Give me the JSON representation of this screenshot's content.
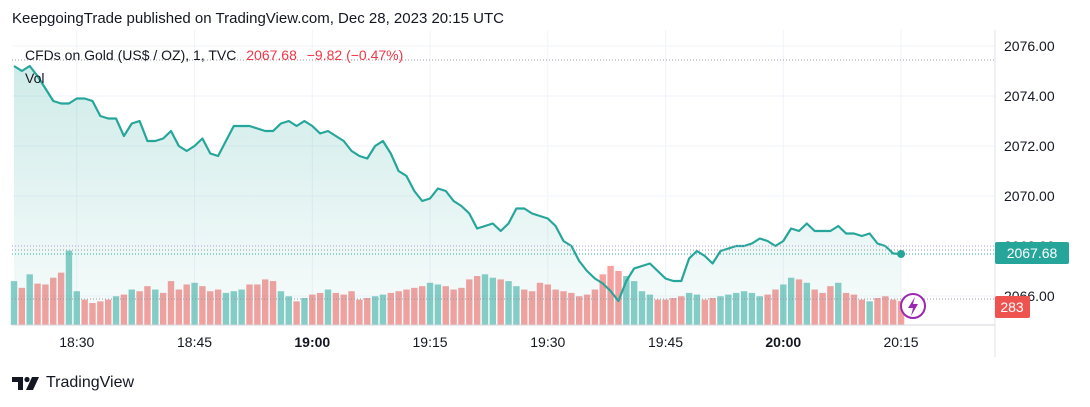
{
  "header": {
    "publisher_line": "KeepgoingTrade published on TradingView.com, Dec 28, 2023 20:15 UTC"
  },
  "legend": {
    "symbol": "CFDs on Gold (US$ / OZ), 1, TVC",
    "price": "2067.68",
    "change": "−9.82 (−0.47%)",
    "volume_label": "Vol"
  },
  "footer": {
    "brand": "TradingView"
  },
  "badges": {
    "price_badge": "2067.68",
    "volume_badge": "283"
  },
  "colors": {
    "line": "#26a69a",
    "area": "#26a69a",
    "up_volume": "#26a69a",
    "down_volume": "#ef5350",
    "price_badge_bg": "#26a69a",
    "volume_badge_bg": "#ef5350"
  },
  "chart_data": {
    "type": "line",
    "title": "",
    "y_axis": {
      "ticks": [
        "2076.00",
        "2074.00",
        "2072.00",
        "2070.00",
        "2066.00"
      ],
      "tick_values": [
        2076,
        2074,
        2072,
        2070,
        2066
      ],
      "range": [
        2065.0,
        2076.5
      ]
    },
    "x_axis": {
      "ticks": [
        "18:30",
        "18:45",
        "19:00",
        "19:15",
        "19:30",
        "19:45",
        "20:00",
        "20:15"
      ],
      "bold": [
        false,
        false,
        true,
        false,
        false,
        false,
        true,
        false
      ],
      "range": [
        "18:22",
        "20:15"
      ]
    },
    "price_series": {
      "x": [
        "18:22",
        "18:23",
        "18:24",
        "18:25",
        "18:26",
        "18:27",
        "18:28",
        "18:29",
        "18:30",
        "18:31",
        "18:32",
        "18:33",
        "18:34",
        "18:35",
        "18:36",
        "18:37",
        "18:38",
        "18:39",
        "18:40",
        "18:41",
        "18:42",
        "18:43",
        "18:44",
        "18:45",
        "18:46",
        "18:47",
        "18:48",
        "18:49",
        "18:50",
        "18:51",
        "18:52",
        "18:53",
        "18:54",
        "18:55",
        "18:56",
        "18:57",
        "18:58",
        "18:59",
        "19:00",
        "19:01",
        "19:02",
        "19:03",
        "19:04",
        "19:05",
        "19:06",
        "19:07",
        "19:08",
        "19:09",
        "19:10",
        "19:11",
        "19:12",
        "19:13",
        "19:14",
        "19:15",
        "19:16",
        "19:17",
        "19:18",
        "19:19",
        "19:20",
        "19:21",
        "19:22",
        "19:23",
        "19:24",
        "19:25",
        "19:26",
        "19:27",
        "19:28",
        "19:29",
        "19:30",
        "19:31",
        "19:32",
        "19:33",
        "19:34",
        "19:35",
        "19:36",
        "19:37",
        "19:38",
        "19:39",
        "19:40",
        "19:41",
        "19:42",
        "19:43",
        "19:44",
        "19:45",
        "19:46",
        "19:47",
        "19:48",
        "19:49",
        "19:50",
        "19:51",
        "19:52",
        "19:53",
        "19:54",
        "19:55",
        "19:56",
        "19:57",
        "19:58",
        "19:59",
        "20:00",
        "20:01",
        "20:02",
        "20:03",
        "20:04",
        "20:05",
        "20:06",
        "20:07",
        "20:08",
        "20:09",
        "20:10",
        "20:11",
        "20:12",
        "20:13",
        "20:14",
        "20:15"
      ],
      "y": [
        2075.2,
        2075.0,
        2075.2,
        2074.8,
        2074.3,
        2073.8,
        2073.7,
        2073.7,
        2073.9,
        2073.9,
        2073.8,
        2073.2,
        2073.1,
        2073.1,
        2072.4,
        2072.9,
        2073.0,
        2072.2,
        2072.2,
        2072.3,
        2072.6,
        2072.0,
        2071.8,
        2072.0,
        2072.3,
        2071.7,
        2071.6,
        2072.2,
        2072.8,
        2072.8,
        2072.8,
        2072.7,
        2072.6,
        2072.6,
        2072.9,
        2073.0,
        2072.8,
        2073.0,
        2072.8,
        2072.5,
        2072.6,
        2072.4,
        2072.2,
        2071.8,
        2071.6,
        2071.5,
        2072.0,
        2072.2,
        2071.7,
        2071.0,
        2070.8,
        2070.2,
        2069.8,
        2069.9,
        2070.3,
        2070.2,
        2069.8,
        2069.6,
        2069.3,
        2068.7,
        2068.8,
        2068.9,
        2068.6,
        2068.9,
        2069.5,
        2069.5,
        2069.3,
        2069.2,
        2069.1,
        2068.8,
        2068.2,
        2068.0,
        2067.4,
        2067.0,
        2066.7,
        2066.5,
        2066.2,
        2065.8,
        2066.6,
        2067.1,
        2067.2,
        2067.3,
        2067.0,
        2066.7,
        2066.6,
        2066.6,
        2067.5,
        2067.8,
        2067.6,
        2067.3,
        2067.8,
        2067.9,
        2068.0,
        2068.0,
        2068.1,
        2068.3,
        2068.2,
        2068.0,
        2068.2,
        2068.7,
        2068.6,
        2068.9,
        2068.6,
        2068.6,
        2068.6,
        2068.8,
        2068.5,
        2068.5,
        2068.4,
        2068.5,
        2068.1,
        2068.0,
        2067.7,
        2067.68
      ]
    },
    "volume_series": {
      "x": [
        "18:22",
        "18:23",
        "18:24",
        "18:25",
        "18:26",
        "18:27",
        "18:28",
        "18:29",
        "18:30",
        "18:31",
        "18:32",
        "18:33",
        "18:34",
        "18:35",
        "18:36",
        "18:37",
        "18:38",
        "18:39",
        "18:40",
        "18:41",
        "18:42",
        "18:43",
        "18:44",
        "18:45",
        "18:46",
        "18:47",
        "18:48",
        "18:49",
        "18:50",
        "18:51",
        "18:52",
        "18:53",
        "18:54",
        "18:55",
        "18:56",
        "18:57",
        "18:58",
        "18:59",
        "19:00",
        "19:01",
        "19:02",
        "19:03",
        "19:04",
        "19:05",
        "19:06",
        "19:07",
        "19:08",
        "19:09",
        "19:10",
        "19:11",
        "19:12",
        "19:13",
        "19:14",
        "19:15",
        "19:16",
        "19:17",
        "19:18",
        "19:19",
        "19:20",
        "19:21",
        "19:22",
        "19:23",
        "19:24",
        "19:25",
        "19:26",
        "19:27",
        "19:28",
        "19:29",
        "19:30",
        "19:31",
        "19:32",
        "19:33",
        "19:34",
        "19:35",
        "19:36",
        "19:37",
        "19:38",
        "19:39",
        "19:40",
        "19:41",
        "19:42",
        "19:43",
        "19:44",
        "19:45",
        "19:46",
        "19:47",
        "19:48",
        "19:49",
        "19:50",
        "19:51",
        "19:52",
        "19:53",
        "19:54",
        "19:55",
        "19:56",
        "19:57",
        "19:58",
        "19:59",
        "20:00",
        "20:01",
        "20:02",
        "20:03",
        "20:04",
        "20:05",
        "20:06",
        "20:07",
        "20:08",
        "20:09",
        "20:10",
        "20:11",
        "20:12",
        "20:13",
        "20:14",
        "20:15"
      ],
      "values": [
        520,
        440,
        600,
        490,
        480,
        560,
        620,
        880,
        400,
        300,
        260,
        280,
        300,
        340,
        360,
        420,
        400,
        460,
        420,
        380,
        520,
        420,
        480,
        500,
        460,
        400,
        420,
        380,
        400,
        420,
        480,
        480,
        540,
        520,
        400,
        340,
        280,
        320,
        360,
        380,
        420,
        380,
        360,
        400,
        300,
        320,
        340,
        360,
        380,
        400,
        420,
        440,
        460,
        500,
        480,
        460,
        420,
        440,
        540,
        580,
        600,
        560,
        540,
        520,
        460,
        420,
        400,
        500,
        480,
        420,
        400,
        380,
        340,
        360,
        420,
        600,
        700,
        640,
        580,
        520,
        400,
        360,
        300,
        300,
        320,
        340,
        380,
        360,
        300,
        320,
        340,
        360,
        380,
        400,
        380,
        340,
        360,
        420,
        480,
        560,
        540,
        500,
        420,
        380,
        460,
        500,
        380,
        360,
        300,
        280,
        320,
        340,
        300,
        283
      ],
      "up": [
        true,
        false,
        true,
        false,
        false,
        false,
        false,
        true,
        true,
        false,
        false,
        false,
        false,
        true,
        false,
        true,
        false,
        false,
        true,
        false,
        false,
        false,
        false,
        true,
        false,
        false,
        false,
        true,
        true,
        true,
        false,
        false,
        false,
        false,
        true,
        true,
        false,
        true,
        false,
        false,
        true,
        false,
        false,
        false,
        false,
        false,
        true,
        true,
        false,
        false,
        false,
        false,
        false,
        true,
        true,
        false,
        false,
        false,
        false,
        false,
        true,
        true,
        false,
        true,
        true,
        false,
        false,
        false,
        false,
        false,
        false,
        false,
        false,
        false,
        false,
        false,
        false,
        false,
        true,
        true,
        true,
        true,
        false,
        false,
        false,
        false,
        true,
        true,
        false,
        false,
        true,
        true,
        true,
        true,
        true,
        true,
        false,
        false,
        true,
        true,
        false,
        true,
        false,
        false,
        false,
        true,
        false,
        false,
        false,
        true,
        false,
        false,
        false,
        false
      ]
    }
  }
}
